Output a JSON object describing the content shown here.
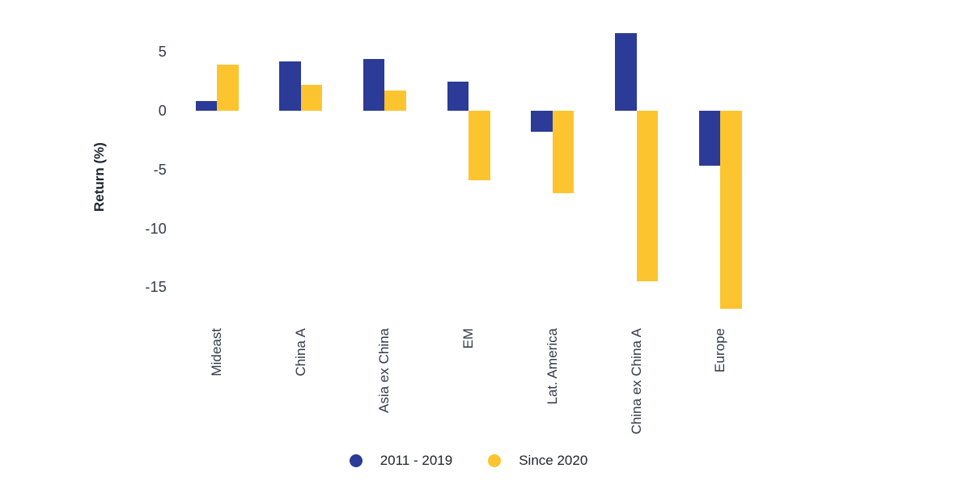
{
  "chart_data": {
    "type": "bar",
    "title": "",
    "xlabel": "",
    "ylabel": "Return (%)",
    "categories": [
      "Mideast",
      "China A",
      "Asia ex China",
      "EM",
      "Lat. America",
      "China ex China A",
      "Europe"
    ],
    "series": [
      {
        "name": "2011 - 2019",
        "color": "#2B3B97",
        "values": [
          0.8,
          4.2,
          4.4,
          2.5,
          -1.8,
          6.6,
          -4.7
        ]
      },
      {
        "name": "Since 2020",
        "color": "#FCC42E",
        "values": [
          3.9,
          2.2,
          1.7,
          -5.9,
          -7.0,
          -14.5,
          -16.8
        ]
      }
    ],
    "yticks": [
      {
        "label": "5",
        "value": 5
      },
      {
        "label": "0",
        "value": 0
      },
      {
        "label": "-5",
        "value": -5
      },
      {
        "label": "-10",
        "value": -10
      },
      {
        "label": "-15",
        "value": -15
      }
    ],
    "ylim": [
      -17.5,
      7.0
    ],
    "grid": false,
    "legend_position": "bottom",
    "background_color": "#FFFFFF",
    "axis_text_color": "#333B47"
  }
}
